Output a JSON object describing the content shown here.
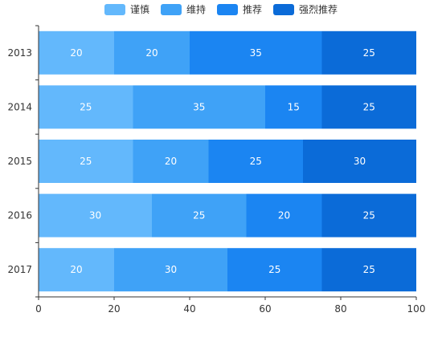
{
  "colors": [
    "#63b8fc",
    "#3fa2f7",
    "#1b85f2",
    "#0b6bd8"
  ],
  "chart_data": {
    "type": "bar",
    "orientation": "horizontal",
    "stacked": true,
    "categories": [
      "2013",
      "2014",
      "2015",
      "2016",
      "2017"
    ],
    "series": [
      {
        "name": "谨慎",
        "values": [
          20,
          25,
          25,
          30,
          20
        ]
      },
      {
        "name": "维持",
        "values": [
          20,
          35,
          20,
          25,
          30
        ]
      },
      {
        "name": "推荐",
        "values": [
          35,
          15,
          25,
          20,
          25
        ]
      },
      {
        "name": "强烈推荐",
        "values": [
          25,
          25,
          30,
          25,
          25
        ]
      }
    ],
    "xlim": [
      0,
      100
    ],
    "xticks": [
      0,
      20,
      40,
      60,
      80,
      100
    ],
    "grid": false,
    "legend": "top-center",
    "data_labels": true
  }
}
